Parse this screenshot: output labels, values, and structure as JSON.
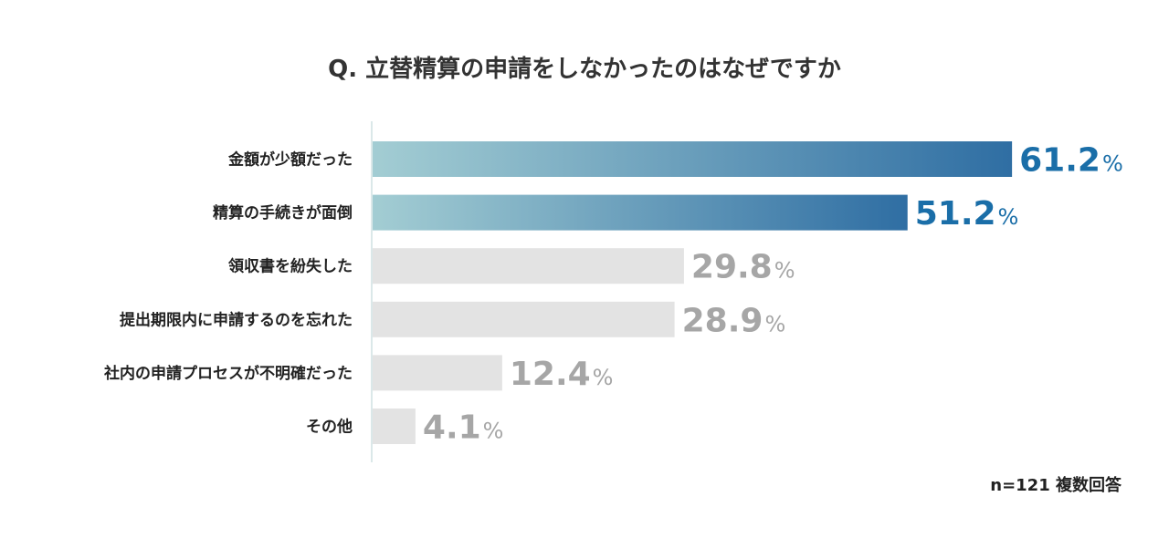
{
  "chart_data": {
    "type": "bar",
    "orientation": "horizontal",
    "title": "Q. 立替精算の申請をしなかったのはなぜですか",
    "categories": [
      "金額が少額だった",
      "精算の手続きが面倒",
      "領収書を紛失した",
      "提出期限内に申請するのを忘れた",
      "社内の申請プロセスが不明確だった",
      "その他"
    ],
    "values": [
      61.2,
      51.2,
      29.8,
      28.9,
      12.4,
      4.1
    ],
    "value_labels": [
      "61.2",
      "51.2",
      "29.8",
      "28.9",
      "12.4",
      "4.1"
    ],
    "unit": "%",
    "highlighted": [
      true,
      true,
      false,
      false,
      false,
      false
    ],
    "xlim": [
      0,
      100
    ],
    "grid": false,
    "footnote": "n=121 複数回答",
    "colors": {
      "highlight_gradient_start": "#a3cdd3",
      "highlight_gradient_end": "#2f6ea3",
      "highlight_label": "#1a6ea8",
      "muted_bar": "#e3e3e3",
      "muted_label": "#a6a6a6",
      "axis": "#cfe0e2"
    }
  }
}
